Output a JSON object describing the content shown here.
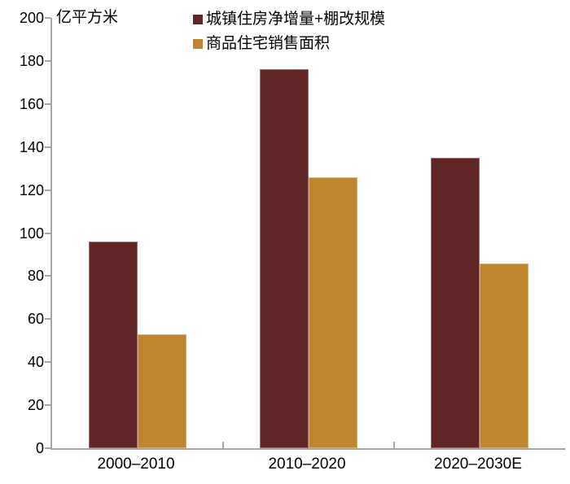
{
  "chart_data": {
    "type": "bar",
    "title": "",
    "unit_label": "亿平方米",
    "categories": [
      "2000–2010",
      "2010–2020",
      "2020–2030E"
    ],
    "series": [
      {
        "name": "城镇住房净增量+棚改规模",
        "color": "#602626",
        "values": [
          96,
          176,
          135
        ]
      },
      {
        "name": "商品住宅销售面积",
        "color": "#bf852e",
        "values": [
          53,
          126,
          86
        ]
      }
    ],
    "ylim": [
      0,
      200
    ],
    "yticks": [
      0,
      20,
      40,
      60,
      80,
      100,
      120,
      140,
      160,
      180,
      200
    ],
    "grid": false,
    "legend_position": "top-center",
    "axis_color": "#a6a6a6",
    "text_color": "#000000",
    "background_color": "#ffffff"
  }
}
